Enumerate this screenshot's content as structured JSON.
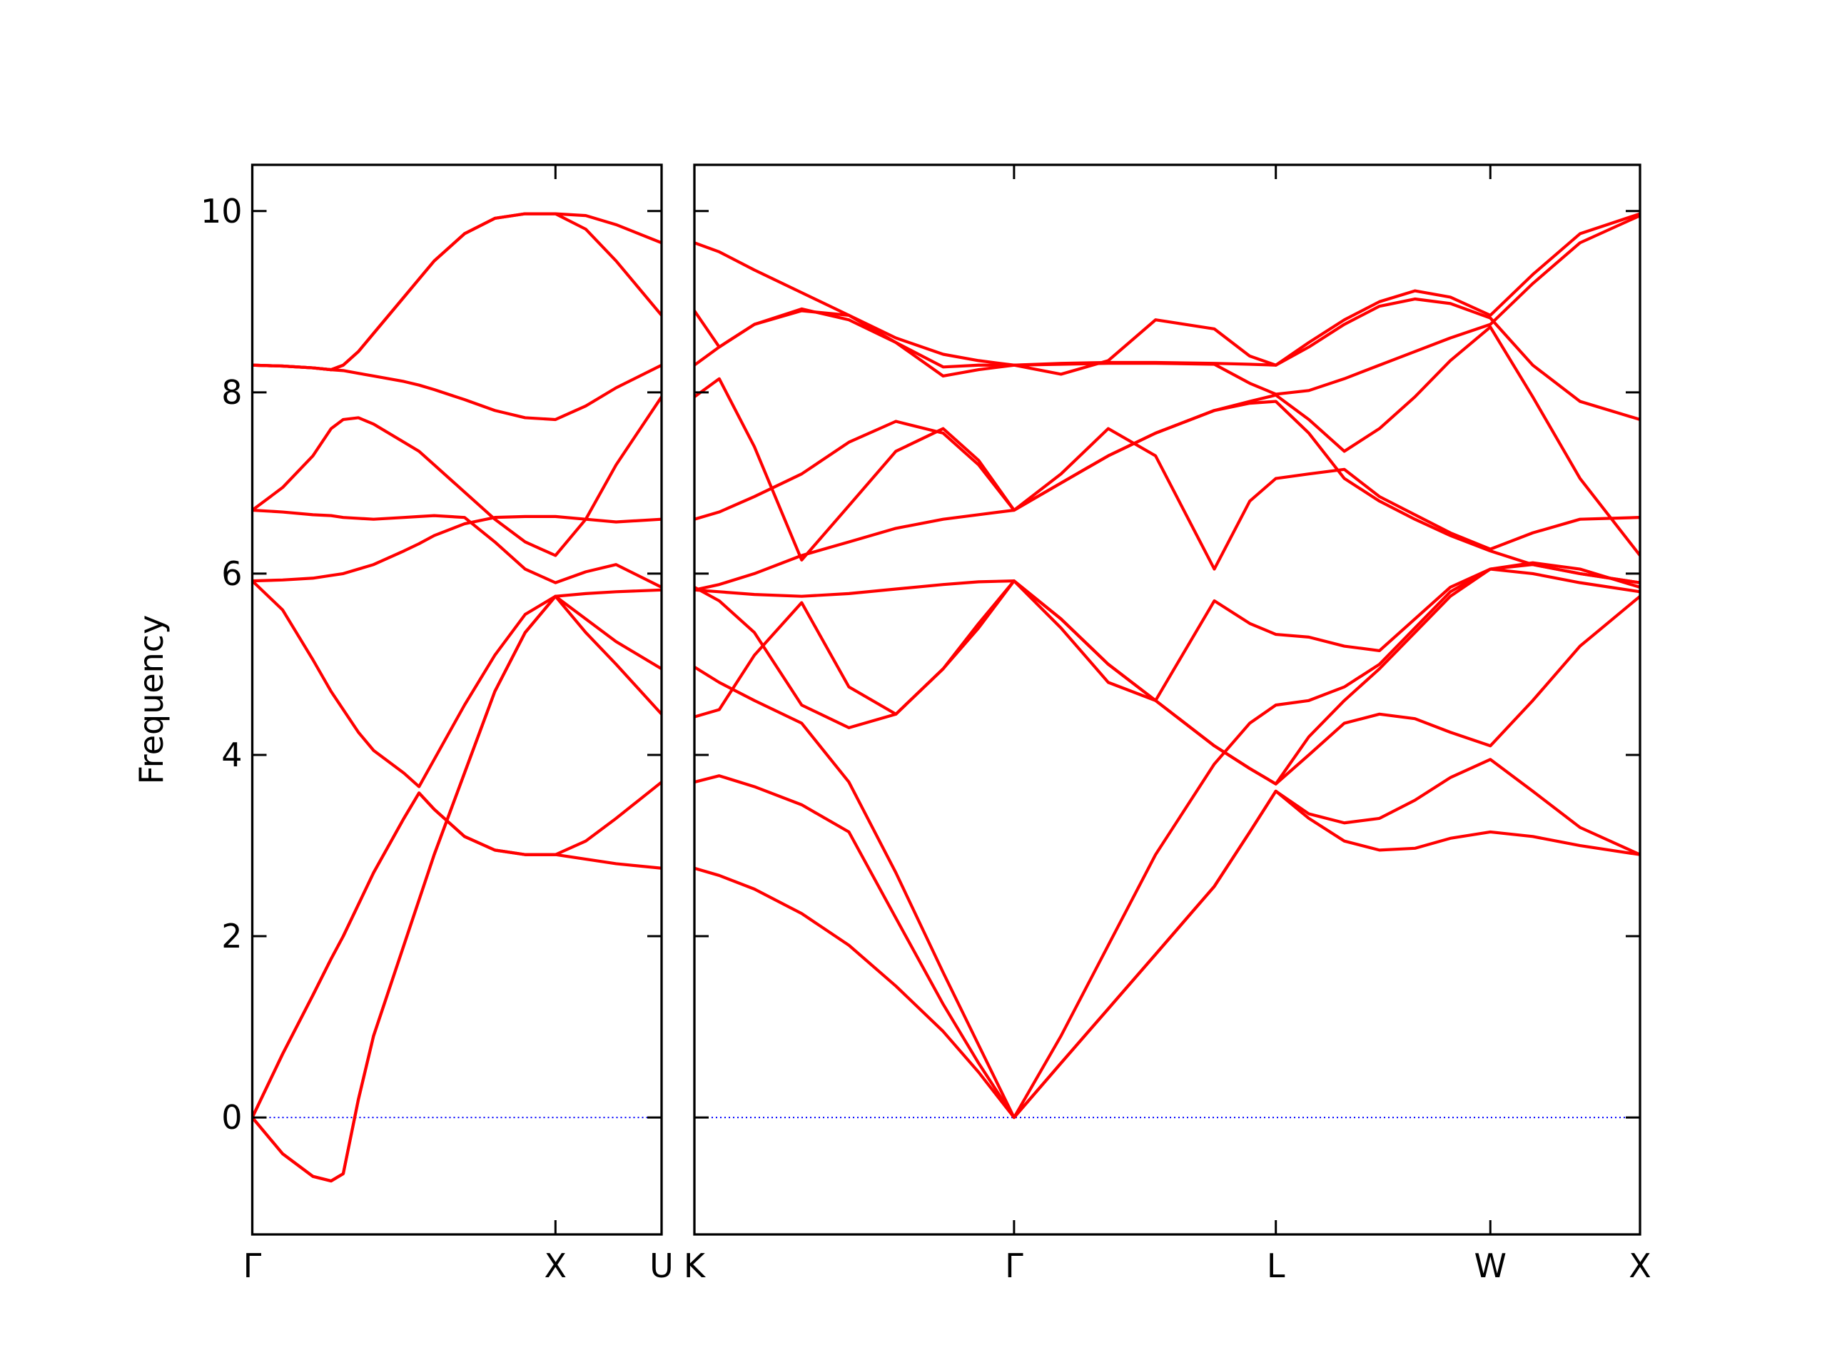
{
  "chart_data": [
    {
      "type": "line",
      "ylabel": "Frequency",
      "color": "#ff0000",
      "zero_line_color": "#0000ff",
      "xlim": [
        0,
        1.35
      ],
      "ylim": [
        -1.29,
        10.51
      ],
      "xticks": [
        {
          "value": 0,
          "label": "Γ"
        },
        {
          "value": 1,
          "label": "X"
        },
        {
          "value": 1.35,
          "label": "U"
        }
      ],
      "yticks": [
        0,
        2,
        4,
        6,
        8,
        10
      ],
      "x": [
        0,
        0.1,
        0.2,
        0.26,
        0.3,
        0.35,
        0.4,
        0.5,
        0.55,
        0.6,
        0.7,
        0.8,
        0.9,
        1,
        1.1,
        1.2,
        1.35
      ],
      "series": [
        {
          "values": [
            0,
            -0.4,
            -0.65,
            -0.7,
            -0.62,
            0.2,
            0.9,
            1.9,
            2.4,
            2.9,
            3.8,
            4.7,
            5.35,
            5.75,
            5.78,
            5.8,
            5.82
          ]
        },
        {
          "values": [
            0,
            0.7,
            1.35,
            1.75,
            2.0,
            2.35,
            2.7,
            3.3,
            3.58,
            3.4,
            3.1,
            2.95,
            2.9,
            2.9,
            2.85,
            2.8,
            2.75
          ]
        },
        {
          "values": [
            0,
            0.7,
            1.35,
            1.75,
            2.0,
            2.35,
            2.7,
            3.3,
            3.58,
            3.4,
            3.1,
            2.95,
            2.9,
            2.9,
            3.05,
            3.3,
            3.7
          ]
        },
        {
          "values": [
            5.92,
            5.6,
            5.05,
            4.7,
            4.5,
            4.25,
            4.05,
            3.8,
            3.65,
            3.95,
            4.55,
            5.1,
            5.55,
            5.75,
            5.35,
            5.0,
            4.45
          ]
        },
        {
          "values": [
            0,
            -0.4,
            -0.65,
            -0.7,
            -0.62,
            0.2,
            0.9,
            1.9,
            2.4,
            2.9,
            3.8,
            4.7,
            5.35,
            5.75,
            5.5,
            5.25,
            4.95
          ]
        },
        {
          "values": [
            5.92,
            5.93,
            5.95,
            5.98,
            6.0,
            6.05,
            6.1,
            6.25,
            6.33,
            6.42,
            6.55,
            6.62,
            6.63,
            6.63,
            6.6,
            6.57,
            6.6
          ]
        },
        {
          "values": [
            6.7,
            6.68,
            6.65,
            6.64,
            6.62,
            6.61,
            6.6,
            6.62,
            6.63,
            6.64,
            6.62,
            6.35,
            6.05,
            5.9,
            6.02,
            6.1,
            5.85
          ]
        },
        {
          "values": [
            6.7,
            6.95,
            7.3,
            7.6,
            7.7,
            7.72,
            7.65,
            7.45,
            7.35,
            7.2,
            6.9,
            6.6,
            6.35,
            6.2,
            6.6,
            7.2,
            7.95
          ]
        },
        {
          "values": [
            8.3,
            8.29,
            8.27,
            8.25,
            8.24,
            8.21,
            8.18,
            8.12,
            8.08,
            8.03,
            7.92,
            7.8,
            7.72,
            7.7,
            7.85,
            8.05,
            8.3
          ]
        },
        {
          "values": [
            8.3,
            8.29,
            8.27,
            8.25,
            8.3,
            8.45,
            8.65,
            9.05,
            9.25,
            9.45,
            9.75,
            9.92,
            9.97,
            9.97,
            9.8,
            9.45,
            8.85
          ]
        },
        {
          "values": [
            8.3,
            8.29,
            8.27,
            8.25,
            8.3,
            8.45,
            8.65,
            9.05,
            9.25,
            9.45,
            9.75,
            9.92,
            9.97,
            9.97,
            9.95,
            9.85,
            9.65
          ]
        }
      ]
    },
    {
      "type": "line",
      "color": "#ff0000",
      "zero_line_color": "#0000ff",
      "xlim": [
        1.35,
        4.471
      ],
      "ylim": [
        -1.29,
        10.51
      ],
      "xticks": [
        {
          "value": 1.35,
          "label": "K"
        },
        {
          "value": 2.405,
          "label": "Γ"
        },
        {
          "value": 3.269,
          "label": "L"
        },
        {
          "value": 3.977,
          "label": "W"
        },
        {
          "value": 4.471,
          "label": "X"
        }
      ],
      "yticks": [
        0,
        2,
        4,
        6,
        8,
        10
      ],
      "x": [
        1.35,
        1.432,
        1.548,
        1.704,
        1.86,
        2.015,
        2.171,
        2.288,
        2.405,
        2.56,
        2.716,
        2.872,
        3.066,
        3.183,
        3.269,
        3.378,
        3.495,
        3.611,
        3.728,
        3.845,
        3.977,
        4.117,
        4.273,
        4.471
      ],
      "series": [
        {
          "values": [
            2.75,
            2.67,
            2.52,
            2.25,
            1.9,
            1.45,
            0.95,
            0.5,
            0,
            0.6,
            1.2,
            1.8,
            2.55,
            3.15,
            3.6,
            3.3,
            3.05,
            2.95,
            2.97,
            3.08,
            3.15,
            3.1,
            3.0,
            2.9
          ]
        },
        {
          "values": [
            3.7,
            3.77,
            3.65,
            3.45,
            3.15,
            2.2,
            1.25,
            0.6,
            0,
            0.9,
            1.9,
            2.9,
            3.9,
            4.35,
            4.55,
            4.6,
            4.75,
            5.0,
            5.4,
            5.8,
            6.05,
            6.1,
            6.0,
            5.9
          ]
        },
        {
          "values": [
            4.97,
            4.8,
            4.6,
            4.35,
            3.7,
            2.7,
            1.6,
            0.8,
            0,
            0.6,
            1.2,
            1.8,
            2.55,
            3.15,
            3.6,
            3.35,
            3.25,
            3.3,
            3.5,
            3.75,
            3.95,
            3.6,
            3.2,
            2.9
          ]
        },
        {
          "values": [
            5.85,
            5.7,
            5.35,
            4.55,
            4.3,
            4.45,
            4.95,
            5.4,
            5.92,
            5.4,
            4.8,
            4.6,
            5.7,
            5.45,
            5.33,
            5.3,
            5.2,
            5.15,
            5.5,
            5.85,
            6.05,
            6.12,
            6.05,
            5.85
          ]
        },
        {
          "values": [
            4.42,
            4.5,
            5.1,
            5.68,
            4.75,
            4.45,
            4.95,
            5.45,
            5.92,
            5.5,
            5.0,
            4.6,
            4.1,
            3.85,
            3.68,
            4.0,
            4.35,
            4.45,
            4.4,
            4.25,
            4.1,
            4.6,
            5.2,
            5.75
          ]
        },
        {
          "values": [
            5.82,
            5.8,
            5.77,
            5.75,
            5.78,
            5.83,
            5.88,
            5.91,
            5.92,
            5.5,
            5.0,
            4.6,
            4.1,
            3.85,
            3.68,
            4.2,
            4.6,
            4.95,
            5.35,
            5.75,
            6.05,
            6.0,
            5.9,
            5.8
          ]
        },
        {
          "values": [
            6.6,
            6.68,
            6.85,
            7.1,
            7.45,
            7.68,
            7.55,
            7.2,
            6.7,
            7.1,
            7.6,
            7.3,
            6.05,
            6.8,
            7.05,
            7.1,
            7.15,
            6.85,
            6.65,
            6.45,
            6.27,
            6.45,
            6.6,
            6.62
          ]
        },
        {
          "values": [
            7.95,
            8.15,
            7.4,
            6.15,
            6.75,
            7.35,
            7.6,
            7.25,
            6.7,
            7.0,
            7.3,
            7.55,
            7.8,
            7.88,
            7.9,
            7.55,
            7.05,
            6.8,
            6.6,
            6.42,
            6.25,
            6.1,
            6.0,
            5.9
          ]
        },
        {
          "values": [
            5.82,
            5.88,
            6.0,
            6.2,
            6.35,
            6.5,
            6.6,
            6.65,
            6.7,
            7.0,
            7.3,
            7.55,
            7.8,
            7.9,
            7.97,
            7.7,
            7.35,
            7.6,
            7.95,
            8.35,
            8.72,
            7.95,
            7.05,
            6.2
          ]
        },
        {
          "values": [
            8.3,
            8.5,
            8.75,
            8.9,
            8.85,
            8.55,
            8.18,
            8.25,
            8.3,
            8.2,
            8.35,
            8.8,
            8.7,
            8.4,
            8.3,
            8.55,
            8.8,
            9.0,
            9.12,
            9.05,
            8.85,
            9.3,
            9.75,
            9.97
          ]
        },
        {
          "values": [
            8.9,
            8.5,
            8.75,
            8.92,
            8.8,
            8.55,
            8.28,
            8.3,
            8.3,
            8.32,
            8.33,
            8.33,
            8.32,
            8.31,
            8.3,
            8.5,
            8.75,
            8.95,
            9.03,
            8.98,
            8.82,
            8.3,
            7.9,
            7.7
          ]
        },
        {
          "values": [
            9.65,
            9.55,
            9.35,
            9.1,
            8.85,
            8.6,
            8.42,
            8.35,
            8.3,
            8.31,
            8.32,
            8.32,
            8.31,
            8.1,
            7.98,
            8.02,
            8.15,
            8.3,
            8.45,
            8.6,
            8.75,
            9.2,
            9.65,
            9.95
          ]
        }
      ]
    }
  ]
}
